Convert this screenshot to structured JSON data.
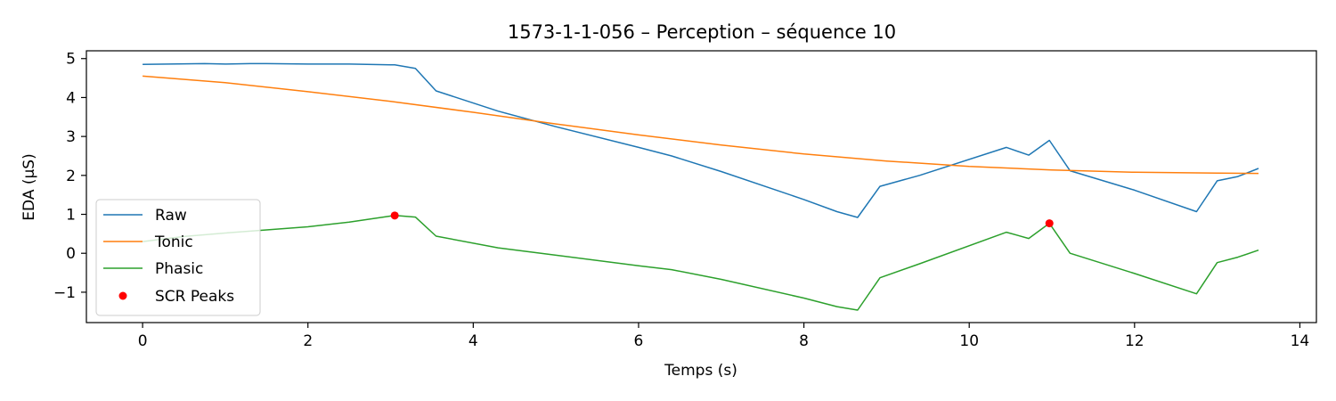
{
  "chart_data": {
    "type": "line",
    "title": "1573-1-1-056 – Perception – séquence 10",
    "xlabel": "Temps (s)",
    "ylabel": "EDA (µS)",
    "xlim": [
      -0.68,
      14.2
    ],
    "ylim": [
      -1.78,
      5.2
    ],
    "x_ticks": [
      0,
      2,
      4,
      6,
      8,
      10,
      12,
      14
    ],
    "x_tick_labels": [
      "0",
      "2",
      "4",
      "6",
      "8",
      "10",
      "12",
      "14"
    ],
    "y_ticks": [
      -1,
      0,
      1,
      2,
      3,
      4,
      5
    ],
    "y_tick_labels": [
      "−1",
      "0",
      "1",
      "2",
      "3",
      "4",
      "5"
    ],
    "grid": false,
    "legend_position": "lower-left",
    "series": [
      {
        "name": "Raw",
        "color": "#1f77b4",
        "x": [
          0,
          0.75,
          1.0,
          1.3,
          1.5,
          2.0,
          2.5,
          3.0,
          3.05,
          3.3,
          3.55,
          4.3,
          5.0,
          6.0,
          6.4,
          7.0,
          8.0,
          8.4,
          8.65,
          8.92,
          9.4,
          10.45,
          10.72,
          10.97,
          11.22,
          12.0,
          12.75,
          13.0,
          13.25,
          13.5
        ],
        "y": [
          4.85,
          4.87,
          4.86,
          4.87,
          4.87,
          4.86,
          4.86,
          4.84,
          4.84,
          4.75,
          4.17,
          3.65,
          3.25,
          2.72,
          2.5,
          2.1,
          1.38,
          1.07,
          0.92,
          1.72,
          2.0,
          2.72,
          2.52,
          2.9,
          2.12,
          1.62,
          1.07,
          1.86,
          1.97,
          2.18
        ]
      },
      {
        "name": "Tonic",
        "color": "#ff7f0e",
        "x": [
          0,
          1,
          2,
          3,
          4,
          5,
          6,
          7,
          8,
          9,
          10,
          11,
          12,
          13,
          13.5
        ],
        "y": [
          4.55,
          4.38,
          4.15,
          3.9,
          3.62,
          3.32,
          3.04,
          2.78,
          2.55,
          2.37,
          2.23,
          2.14,
          2.08,
          2.06,
          2.05
        ]
      },
      {
        "name": "Phasic",
        "color": "#2ca02c",
        "x": [
          0,
          0.5,
          1.0,
          1.5,
          2.0,
          2.5,
          3.05,
          3.3,
          3.55,
          4.3,
          5.0,
          6.0,
          6.4,
          7.0,
          8.0,
          8.4,
          8.65,
          8.92,
          9.4,
          10.45,
          10.72,
          10.97,
          11.22,
          12.0,
          12.75,
          13.0,
          13.25,
          13.5
        ],
        "y": [
          0.3,
          0.43,
          0.52,
          0.6,
          0.68,
          0.8,
          0.97,
          0.93,
          0.44,
          0.14,
          -0.05,
          -0.32,
          -0.42,
          -0.67,
          -1.15,
          -1.37,
          -1.46,
          -0.63,
          -0.27,
          0.54,
          0.38,
          0.77,
          0.0,
          -0.52,
          -1.04,
          -0.24,
          -0.1,
          0.08
        ]
      }
    ],
    "peaks": {
      "name": "SCR Peaks",
      "color": "#ff0000",
      "points": [
        {
          "x": 3.05,
          "y": 0.97
        },
        {
          "x": 10.97,
          "y": 0.77
        }
      ]
    }
  }
}
